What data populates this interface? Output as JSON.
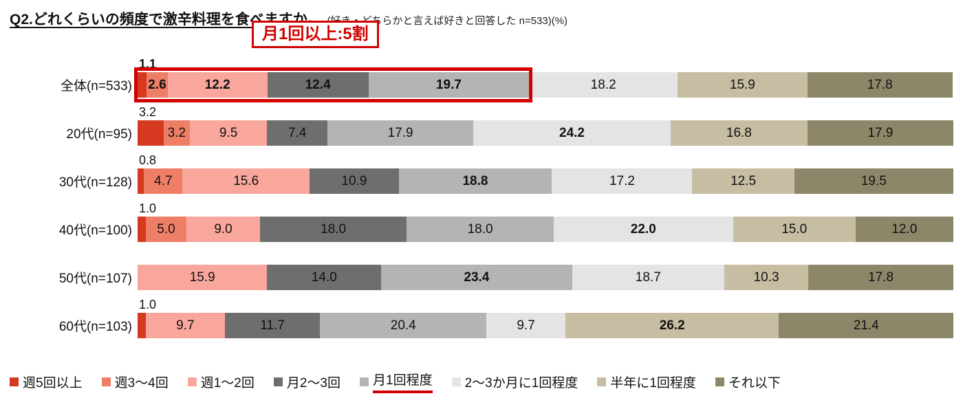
{
  "title": {
    "main": "Q2.どれくらいの頻度で激辛料理を食べますか。",
    "note": "(好き・どちらかと言えば好きと回答した n=533)(%)"
  },
  "annotation": {
    "label": "月1回以上:5割",
    "color": "#d20000"
  },
  "chart_data": {
    "type": "bar",
    "stacked": true,
    "orientation": "horizontal",
    "unit": "%",
    "xlim": [
      0,
      100
    ],
    "legend_position": "bottom",
    "series_labels": [
      "週5回以上",
      "週3〜4回",
      "週1〜2回",
      "月2〜3回",
      "月1回程度",
      "2〜3か月に1回程度",
      "半年に1回程度",
      "それ以下"
    ],
    "series_colors": [
      "#d5391f",
      "#ef7e67",
      "#f9a79c",
      "#6e6e6e",
      "#b4b4b4",
      "#e4e4e4",
      "#c6bda2",
      "#8d8769"
    ],
    "legend_underline_index": 4,
    "rows": [
      {
        "label": "全体(n=533)",
        "values": [
          1.1,
          2.6,
          12.2,
          12.4,
          19.7,
          18.2,
          15.9,
          17.8
        ],
        "labels": [
          "",
          "2.6",
          "12.2",
          "12.4",
          "19.7",
          "18.2",
          "15.9",
          "17.8"
        ],
        "bold_indices": [
          1,
          2,
          3,
          4
        ],
        "above_label": "1.1",
        "above_bold": true,
        "highlight_pct": 48.0
      },
      {
        "label": "20代(n=95)",
        "values": [
          3.2,
          3.2,
          9.5,
          7.4,
          17.9,
          24.2,
          16.8,
          17.9
        ],
        "labels": [
          "",
          "3.2",
          "9.5",
          "7.4",
          "17.9",
          "24.2",
          "16.8",
          "17.9"
        ],
        "bold_indices": [
          5
        ],
        "above_label": "3.2",
        "above_bold": false
      },
      {
        "label": "30代(n=128)",
        "values": [
          0.8,
          4.7,
          15.6,
          10.9,
          18.8,
          17.2,
          12.5,
          19.5
        ],
        "labels": [
          "",
          "4.7",
          "15.6",
          "10.9",
          "18.8",
          "17.2",
          "12.5",
          "19.5"
        ],
        "bold_indices": [
          4
        ],
        "above_label": "0.8",
        "above_bold": false
      },
      {
        "label": "40代(n=100)",
        "values": [
          1.0,
          5.0,
          9.0,
          18.0,
          18.0,
          22.0,
          15.0,
          12.0
        ],
        "labels": [
          "",
          "5.0",
          "9.0",
          "18.0",
          "18.0",
          "22.0",
          "15.0",
          "12.0"
        ],
        "bold_indices": [
          5
        ],
        "above_label": "1.0",
        "above_bold": false
      },
      {
        "label": "50代(n=107)",
        "values": [
          0,
          0,
          15.9,
          14.0,
          23.4,
          18.7,
          10.3,
          17.8
        ],
        "labels": [
          "",
          "",
          "15.9",
          "14.0",
          "23.4",
          "18.7",
          "10.3",
          "17.8"
        ],
        "bold_indices": [
          4
        ],
        "above_label": "",
        "above_bold": false
      },
      {
        "label": "60代(n=103)",
        "values": [
          1.0,
          0,
          9.7,
          11.7,
          20.4,
          9.7,
          26.2,
          21.4
        ],
        "labels": [
          "",
          "",
          "9.7",
          "11.7",
          "20.4",
          "9.7",
          "26.2",
          "21.4"
        ],
        "bold_indices": [
          6
        ],
        "above_label": "1.0",
        "above_bold": false
      }
    ]
  }
}
